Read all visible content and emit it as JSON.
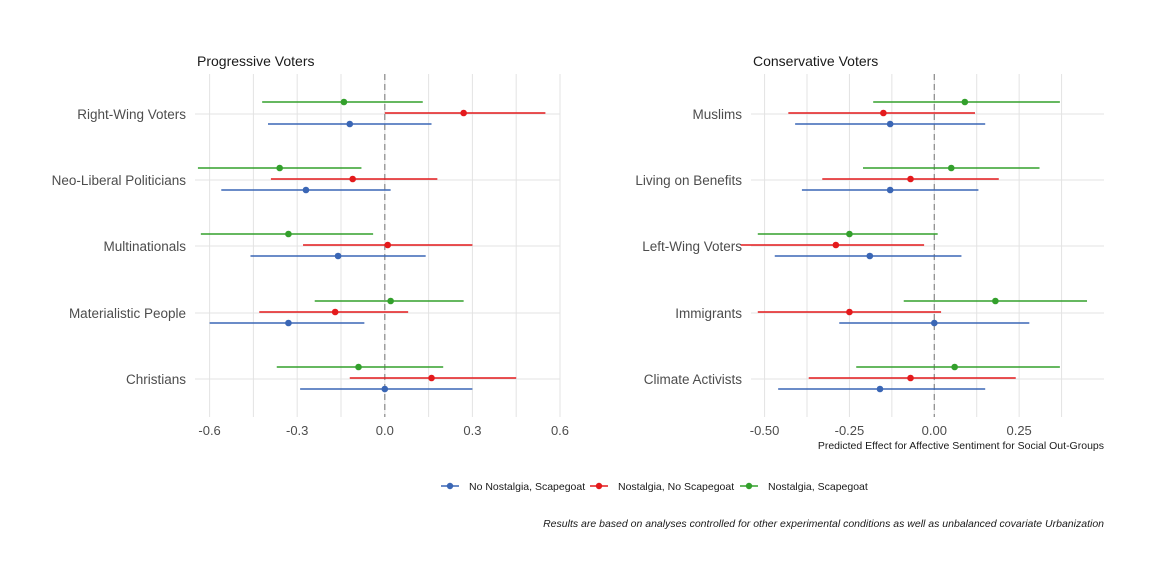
{
  "chart_data": {
    "type": "scatter",
    "subtype": "coefficient-plot",
    "x_label": "Predicted Effect for Affective Sentiment for Social Out-Groups",
    "caption": "Results are based on analyses controlled for other experimental conditions as well as unbalanced covariate Urbanization",
    "legend_position": "bottom",
    "grid": true,
    "series": [
      {
        "name": "No Nostalgia, Scapegoat",
        "color": "#3a66b5"
      },
      {
        "name": "Nostalgia, No Scapegoat",
        "color": "#e41a1c"
      },
      {
        "name": "Nostalgia, Scapegoat",
        "color": "#33a02c"
      }
    ],
    "panels": [
      {
        "title": "Progressive Voters",
        "xlim": [
          -0.65,
          0.6
        ],
        "xticks": [
          -0.6,
          -0.3,
          0.0,
          0.3,
          0.6
        ],
        "xtick_labels": [
          "-0.6",
          "-0.3",
          "0.0",
          "0.3",
          "0.6"
        ],
        "categories": [
          "Right-Wing Voters",
          "Neo-Liberal Politicians",
          "Multinationals",
          "Materialistic People",
          "Christians"
        ],
        "estimates": [
          [
            {
              "est": -0.12,
              "lo": -0.4,
              "hi": 0.16
            },
            {
              "est": 0.27,
              "lo": 0.0,
              "hi": 0.55
            },
            {
              "est": -0.14,
              "lo": -0.42,
              "hi": 0.13
            }
          ],
          [
            {
              "est": -0.27,
              "lo": -0.56,
              "hi": 0.02
            },
            {
              "est": -0.11,
              "lo": -0.39,
              "hi": 0.18
            },
            {
              "est": -0.36,
              "lo": -0.64,
              "hi": -0.08
            }
          ],
          [
            {
              "est": -0.16,
              "lo": -0.46,
              "hi": 0.14
            },
            {
              "est": 0.01,
              "lo": -0.28,
              "hi": 0.3
            },
            {
              "est": -0.33,
              "lo": -0.63,
              "hi": -0.04
            }
          ],
          [
            {
              "est": -0.33,
              "lo": -0.6,
              "hi": -0.07
            },
            {
              "est": -0.17,
              "lo": -0.43,
              "hi": 0.08
            },
            {
              "est": 0.02,
              "lo": -0.24,
              "hi": 0.27
            }
          ],
          [
            {
              "est": 0.0,
              "lo": -0.29,
              "hi": 0.3
            },
            {
              "est": 0.16,
              "lo": -0.12,
              "hi": 0.45
            },
            {
              "est": -0.09,
              "lo": -0.37,
              "hi": 0.2
            }
          ]
        ]
      },
      {
        "title": "Conservative Voters",
        "xlim": [
          -0.54,
          0.5
        ],
        "xticks": [
          -0.5,
          -0.25,
          0.0,
          0.25
        ],
        "xtick_labels": [
          "-0.50",
          "-0.25",
          "0.00",
          "0.25"
        ],
        "categories": [
          "Muslims",
          "Living on Benefits",
          "Left-Wing Voters",
          "Immigrants",
          "Climate Activists"
        ],
        "estimates": [
          [
            {
              "est": -0.13,
              "lo": -0.41,
              "hi": 0.15
            },
            {
              "est": -0.15,
              "lo": -0.43,
              "hi": 0.12
            },
            {
              "est": 0.09,
              "lo": -0.18,
              "hi": 0.37
            }
          ],
          [
            {
              "est": -0.13,
              "lo": -0.39,
              "hi": 0.13
            },
            {
              "est": -0.07,
              "lo": -0.33,
              "hi": 0.19
            },
            {
              "est": 0.05,
              "lo": -0.21,
              "hi": 0.31
            }
          ],
          [
            {
              "est": -0.19,
              "lo": -0.47,
              "hi": 0.08
            },
            {
              "est": -0.29,
              "lo": -0.57,
              "hi": -0.03
            },
            {
              "est": -0.25,
              "lo": -0.52,
              "hi": 0.01
            }
          ],
          [
            {
              "est": 0.0,
              "lo": -0.28,
              "hi": 0.28
            },
            {
              "est": -0.25,
              "lo": -0.52,
              "hi": 0.02
            },
            {
              "est": 0.18,
              "lo": -0.09,
              "hi": 0.45
            }
          ],
          [
            {
              "est": -0.16,
              "lo": -0.46,
              "hi": 0.15
            },
            {
              "est": -0.07,
              "lo": -0.37,
              "hi": 0.24
            },
            {
              "est": 0.06,
              "lo": -0.23,
              "hi": 0.37
            }
          ]
        ]
      }
    ]
  }
}
